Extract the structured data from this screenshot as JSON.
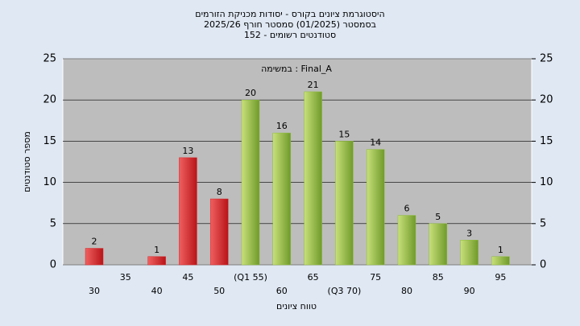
{
  "chart_data": {
    "type": "bar",
    "title": "היסטוגרמת ציונים בקורס - יסודות מכניקת הזורמים",
    "subtitle": "בסמסטר  (01/2025)  סמסטר חורף 2025/26",
    "subtitle2": "סטודנטים רשומים - 152",
    "annotation": "במשימה : Final_A",
    "x_label": "טווח ציונים",
    "y_label": "מספר סטודנטים",
    "categories": [
      "30",
      "35",
      "40",
      "45",
      "50",
      "(Q1 55)",
      "60",
      "65",
      "(Q3 70)",
      "75",
      "80",
      "85",
      "90",
      "95"
    ],
    "values": [
      2,
      0,
      1,
      13,
      8,
      20,
      16,
      21,
      15,
      14,
      6,
      5,
      3,
      1
    ],
    "colors": [
      "#d9262a",
      "#d9262a",
      "#d9262a",
      "#d9262a",
      "#d9262a",
      "#8fbc3c",
      "#8fbc3c",
      "#8fbc3c",
      "#8fbc3c",
      "#8fbc3c",
      "#8fbc3c",
      "#8fbc3c",
      "#8fbc3c",
      "#8fbc3c"
    ],
    "ylim": [
      0,
      25
    ],
    "yticks": [
      0,
      5,
      10,
      15,
      20,
      25
    ],
    "y2lim": [
      0,
      25
    ],
    "y2ticks": [
      0,
      5,
      10,
      15,
      20,
      25
    ],
    "grid": true
  }
}
